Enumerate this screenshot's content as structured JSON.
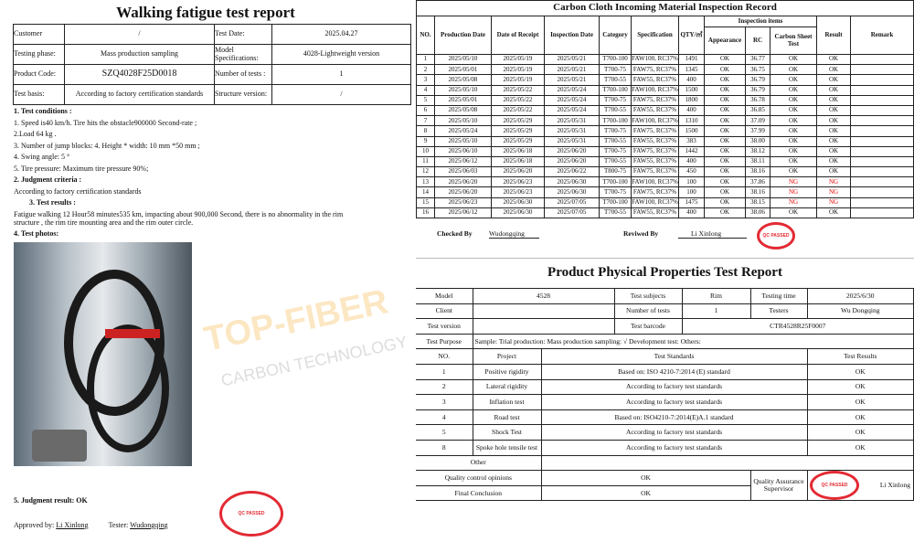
{
  "watermark": {
    "brand": "TOP-FIBER",
    "tagline": "CARBON TECHNOLOGY"
  },
  "fatigue": {
    "title": "Walking fatigue test report",
    "info": [
      [
        "Customer",
        "/",
        "Test Date:",
        "2025.04.27"
      ],
      [
        "Testing phase:",
        "Mass production sampling",
        "Model Specifications:",
        "4028-Lightweight version"
      ],
      [
        "Product Code:",
        "SZQ4028F25D0018",
        "Number of tests :",
        "1"
      ],
      [
        "Test basis:",
        "According to factory certification standards",
        "Structure version:",
        "/"
      ]
    ],
    "lines": [
      "1. Test conditions :",
      "1. Speed is40 km/h. Tire hits the obstacle900000 Second-rate ;",
      "2.Load    64 kg .",
      "3. Number of jump blocks: 4. Height * width: 10 mm *50 mm ;",
      "4. Swing angle: 5 °",
      "5. Tire pressure: Maximum tire pressure 90%;",
      "2. Judgment criteria :",
      "According to factory certification standards",
      "3. Test results :",
      "Fatigue walking 12 Hour58 minutes535 km, impacting about 900,000 Second, there is no abnormality in the rim",
      "structure , the rim tire mounting area and the rim outer circle.",
      "4. Test photos:"
    ],
    "judgment": "5. Judgment result: OK",
    "approved_label": "Approved by:",
    "approved_name": "Li Xinlong",
    "tester_label": "Tester:",
    "tester_name": "Wudongqing",
    "stamp_text": "QC PASSED"
  },
  "inspection": {
    "title": "Carbon Cloth Incoming Material Inspection Record",
    "headers": {
      "no": "NO.",
      "prod": "Production Date",
      "receipt": "Date of Receipt",
      "insp": "Inspection Date",
      "cat": "Category",
      "spec": "Specification",
      "qty": "QTY/㎡",
      "items": "Inspection items",
      "appearance": "Appearance",
      "rc": "RC",
      "cst": "Carbon Sheet Test",
      "result": "Result",
      "remark": "Remark"
    },
    "rows": [
      [
        "1",
        "2025/05/10",
        "2025/05/19",
        "2025/05/21",
        "T700-100",
        "FAW100, RC37%",
        "1491",
        "OK",
        "36.77",
        "OK",
        "OK",
        ""
      ],
      [
        "2",
        "2025/05/01",
        "2025/05/19",
        "2025/05/21",
        "T700-75",
        "FAW75, RC37%",
        "1345",
        "OK",
        "36.75",
        "OK",
        "OK",
        ""
      ],
      [
        "3",
        "2025/05/08",
        "2025/05/19",
        "2025/05/21",
        "T700-55",
        "FAW55, RC37%",
        "400",
        "OK",
        "36.79",
        "OK",
        "OK",
        ""
      ],
      [
        "4",
        "2025/05/10",
        "2025/05/22",
        "2025/05/24",
        "T700-100",
        "FAW100, RC37%",
        "1500",
        "OK",
        "36.79",
        "OK",
        "OK",
        ""
      ],
      [
        "5",
        "2025/05/01",
        "2025/05/22",
        "2025/05/24",
        "T700-75",
        "FAW75, RC37%",
        "1800",
        "OK",
        "36.78",
        "OK",
        "OK",
        ""
      ],
      [
        "6",
        "2025/05/08",
        "2025/05/22",
        "2025/05/24",
        "T700-55",
        "FAW55, RC37%",
        "400",
        "OK",
        "36.85",
        "OK",
        "OK",
        ""
      ],
      [
        "7",
        "2025/05/10",
        "2025/05/29",
        "2025/05/31",
        "T700-100",
        "FAW100, RC37%",
        "1310",
        "OK",
        "37.09",
        "OK",
        "OK",
        ""
      ],
      [
        "8",
        "2025/05/24",
        "2025/05/29",
        "2025/05/31",
        "T700-75",
        "FAW75, RC37%",
        "1500",
        "OK",
        "37.99",
        "OK",
        "OK",
        ""
      ],
      [
        "9",
        "2025/05/10",
        "2025/05/29",
        "2025/05/31",
        "T700-55",
        "FAW55, RC37%",
        "383",
        "OK",
        "38.00",
        "OK",
        "OK",
        ""
      ],
      [
        "10",
        "2025/06/10",
        "2025/06/18",
        "2025/06/20",
        "T700-75",
        "FAW75, RC37%",
        "1442",
        "OK",
        "38.12",
        "OK",
        "OK",
        ""
      ],
      [
        "11",
        "2025/06/12",
        "2025/06/18",
        "2025/06/20",
        "T700-55",
        "FAW55, RC37%",
        "400",
        "OK",
        "38.11",
        "OK",
        "OK",
        ""
      ],
      [
        "12",
        "2025/06/03",
        "2025/06/20",
        "2025/06/22",
        "T800-75",
        "FAW75, RC37%",
        "450",
        "OK",
        "38.16",
        "OK",
        "OK",
        ""
      ],
      [
        "13",
        "2025/06/20",
        "2025/06/23",
        "2025/06/30",
        "T700-100",
        "FAW100, RC37%",
        "100",
        "OK",
        "37.86",
        "NG",
        "NG",
        ""
      ],
      [
        "14",
        "2025/06/20",
        "2025/06/23",
        "2025/06/30",
        "T700-75",
        "FAW75, RC37%",
        "100",
        "OK",
        "38.16",
        "NG",
        "NG",
        ""
      ],
      [
        "15",
        "2025/06/23",
        "2025/06/30",
        "2025/07/05",
        "T700-100",
        "FAW100, RC37%",
        "1475",
        "OK",
        "38.15",
        "NG",
        "NG",
        ""
      ],
      [
        "16",
        "2025/06/12",
        "2025/06/30",
        "2025/07/05",
        "T700-55",
        "FAW55, RC37%",
        "400",
        "OK",
        "38.06",
        "OK",
        "OK",
        ""
      ]
    ],
    "checked_label": "Checked By",
    "checked_name": "Wudongqing",
    "reviewed_label": "Reviwed By",
    "reviewed_name": "Li Xinlong",
    "ng_color": "#e00000"
  },
  "physical": {
    "title": "Product Physical Properties Test Report",
    "model_label": "Model",
    "model": "4528",
    "subjects_label": "Test subjects",
    "subjects": "Rim",
    "time_label": "Testing time",
    "time": "2025/6/30",
    "client_label": "Client",
    "client": "",
    "num_label": "Number of tests",
    "num": "1",
    "testers_label": "Testers",
    "testers": "Wu Dongqing",
    "version_label": "Test version",
    "version": "",
    "barcode_label": "Test barcode",
    "barcode": "CTR4528R25F0007",
    "purpose_label": "Test Purpose",
    "purpose": "Sample: Trial production: Mass production sampling: √ Development test: Others:",
    "headers": [
      "NO.",
      "Project",
      "Test Standards",
      "Test Results"
    ],
    "rows": [
      [
        "1",
        "Positive rigidity",
        "Based on: ISO 4210-7:2014 (E) standard",
        "OK"
      ],
      [
        "2",
        "Lateral rigidity",
        "According to factory test standards",
        "OK"
      ],
      [
        "3",
        "Inflation test",
        "According to factory test standards",
        "OK"
      ],
      [
        "4",
        "Road test",
        "Based on: ISO4210-7:2014(E)A.1 standard",
        "OK"
      ],
      [
        "5",
        "Shock Test",
        "According to factory test standards",
        "OK"
      ],
      [
        "8",
        "Spoke hole tensile test",
        "According to factory test standards",
        "OK"
      ]
    ],
    "other_label": "Other",
    "qc_label": "Quality control opinions",
    "qc": "OK",
    "final_label": "Final Conclusion",
    "final": "OK",
    "qa_label": "Quality Assurance Supervisor",
    "qa_name": "Li Xinlong"
  }
}
